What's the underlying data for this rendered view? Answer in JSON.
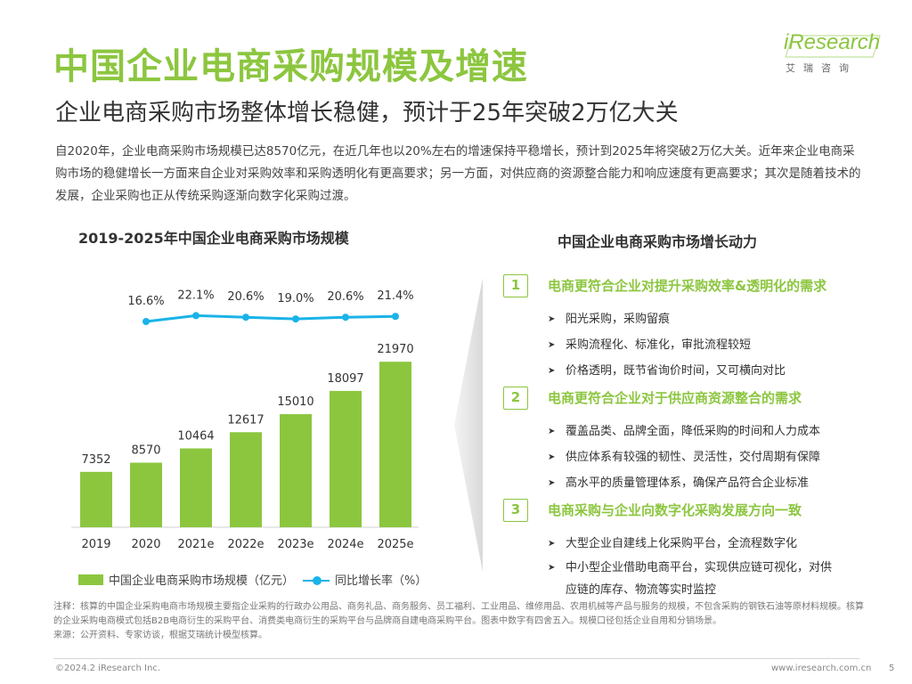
{
  "header": {
    "title": "中国企业电商采购规模及增速",
    "subtitle": "企业电商采购市场整体增长稳健，预计于25年突破2万亿大关",
    "logo_text": "iResearch",
    "logo_sub": "艾瑞咨询"
  },
  "intro": "自2020年，企业电商采购市场规模已达8570亿元，在近几年也以20%左右的增速保持平稳增长，预计到2025年将突破2万亿大关。近年来企业电商采购市场的稳健增长一方面来自企业对采购效率和采购透明化有更高要求；另一方面，对供应商的资源整合能力和响应速度有更高要求；其次是随着技术的发展，企业采购也正从传统采购逐渐向数字化采购过渡。",
  "colors": {
    "accent": "#8cc63f",
    "line": "#1ab3e8"
  },
  "chart_data": {
    "type": "bar",
    "title": "2019-2025年中国企业电商采购市场规模",
    "categories": [
      "2019",
      "2020",
      "2021e",
      "2022e",
      "2023e",
      "2024e",
      "2025e"
    ],
    "series": [
      {
        "name": "中国企业电商采购市场规模（亿元）",
        "type": "bar",
        "values": [
          7352,
          8570,
          10464,
          12617,
          15010,
          18097,
          21970
        ]
      },
      {
        "name": "同比增长率（%）",
        "type": "line",
        "values": [
          null,
          16.6,
          22.1,
          20.6,
          19.0,
          20.6,
          21.4
        ],
        "labels": [
          "",
          "16.6%",
          "22.1%",
          "20.6%",
          "19.0%",
          "20.6%",
          "21.4%"
        ]
      }
    ],
    "legend_position": "bottom"
  },
  "drivers": {
    "title": "中国企业电商采购市场增长动力",
    "items": [
      {
        "num": "1",
        "heading": "电商更符合企业对提升采购效率&透明化的需求",
        "points": [
          "阳光采购，采购留痕",
          "采购流程化、标准化，审批流程较短",
          "价格透明，既节省询价时间，又可横向对比"
        ]
      },
      {
        "num": "2",
        "heading": "电商更符合企业对于供应商资源整合的需求",
        "points": [
          "覆盖品类、品牌全面，降低采购的时间和人力成本",
          "供应体系有较强的韧性、灵活性，交付周期有保障",
          "高水平的质量管理体系，确保产品符合企业标准"
        ]
      },
      {
        "num": "3",
        "heading": "电商采购与企业向数字化采购发展方向一致",
        "points": [
          "大型企业自建线上化采购平台，全流程数字化",
          "中小型企业借助电商平台，实现供应链可视化，对供应链的库存、物流等实时监控"
        ]
      }
    ]
  },
  "notes": {
    "note": "注释：核算的中国企业采购电商市场规模主要指企业采购的行政办公用品、商务礼品、商务服务、员工福利、工业用品、维修用品、农用机械等产品与服务的规模，不包含采购的钢铁石油等原材料规模。核算的企业采购电商模式包括B2B电商衍生的采购平台、消费类电商衍生的采购平台与品牌商自建电商采购平台。图表中数字有四舍五入。规模口径包括企业自用和分销场景。",
    "source": "来源：公开资料、专家访谈，根据艾瑞统计模型核算。"
  },
  "footer": {
    "copyright": "©2024.2 iResearch Inc.",
    "url": "www.iresearch.com.cn",
    "page": "5"
  }
}
